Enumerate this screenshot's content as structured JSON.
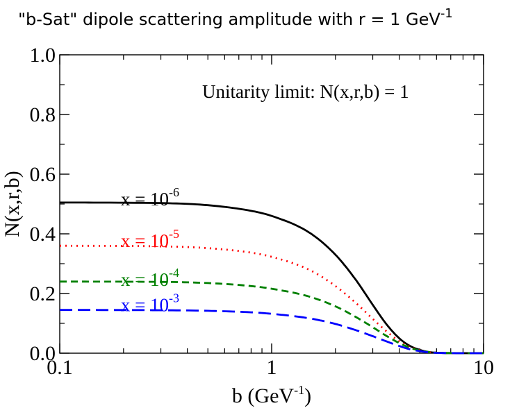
{
  "chart_data": {
    "type": "line",
    "title": {
      "main": "\"b-Sat\" dipole scattering amplitude with r = 1 GeV",
      "sup": "-1"
    },
    "xlabel": {
      "main": "b  (GeV",
      "sup": "-1",
      "tail": ")"
    },
    "ylabel": "N(x,r,b)",
    "x_scale": "log",
    "xlim": [
      0.1,
      10
    ],
    "ylim": [
      0,
      1
    ],
    "x_ticks": [
      {
        "value": 0.1,
        "label": "0.1"
      },
      {
        "value": 1,
        "label": "1"
      },
      {
        "value": 10,
        "label": "10"
      }
    ],
    "y_ticks": [
      {
        "value": 0.0,
        "label": "0.0"
      },
      {
        "value": 0.2,
        "label": "0.2"
      },
      {
        "value": 0.4,
        "label": "0.4"
      },
      {
        "value": 0.6,
        "label": "0.6"
      },
      {
        "value": 0.8,
        "label": "0.8"
      },
      {
        "value": 1.0,
        "label": "1.0"
      }
    ],
    "grid": false,
    "annotation": "Unitarity limit: N(x,r,b) = 1",
    "series": [
      {
        "label_main": "x = 10",
        "label_sup": "-6",
        "color": "#000000",
        "dash": "solid",
        "label_x": 0.2,
        "label_y": 0.5,
        "x": [
          0.1,
          0.3,
          0.5,
          0.8,
          1.0,
          1.5,
          2.0,
          2.5,
          3.0,
          3.5,
          4.0,
          4.5,
          5.0,
          5.5,
          6.0,
          7.0,
          8.0,
          10.0
        ],
        "y": [
          0.505,
          0.503,
          0.496,
          0.477,
          0.46,
          0.405,
          0.33,
          0.245,
          0.162,
          0.095,
          0.05,
          0.024,
          0.011,
          0.004,
          0.0015,
          0.0003,
          0.0,
          0.0
        ]
      },
      {
        "label_main": "x = 10",
        "label_sup": "-5",
        "color": "#ff0000",
        "dash": "dotted",
        "label_x": 0.2,
        "label_y": 0.36,
        "x": [
          0.1,
          0.3,
          0.5,
          0.8,
          1.0,
          1.5,
          2.0,
          2.5,
          3.0,
          3.5,
          4.0,
          4.5,
          5.0,
          5.5,
          6.0,
          7.0,
          8.0,
          10.0
        ],
        "y": [
          0.36,
          0.358,
          0.352,
          0.337,
          0.323,
          0.28,
          0.225,
          0.168,
          0.115,
          0.072,
          0.04,
          0.021,
          0.01,
          0.004,
          0.0015,
          0.0003,
          0.0,
          0.0
        ]
      },
      {
        "label_main": "x = 10",
        "label_sup": "-4",
        "color": "#008000",
        "dash": "dashed",
        "label_x": 0.2,
        "label_y": 0.23,
        "x": [
          0.1,
          0.3,
          0.5,
          0.8,
          1.0,
          1.5,
          2.0,
          2.5,
          3.0,
          3.5,
          4.0,
          4.5,
          5.0,
          5.5,
          6.0,
          7.0,
          8.0,
          10.0
        ],
        "y": [
          0.24,
          0.239,
          0.235,
          0.225,
          0.216,
          0.19,
          0.157,
          0.121,
          0.087,
          0.057,
          0.034,
          0.018,
          0.009,
          0.004,
          0.0015,
          0.0003,
          0.0,
          0.0
        ]
      },
      {
        "label_main": "x = 10",
        "label_sup": "-3",
        "color": "#0000ff",
        "dash": "long-dashed",
        "label_x": 0.2,
        "label_y": 0.145,
        "x": [
          0.1,
          0.3,
          0.5,
          0.8,
          1.0,
          1.5,
          2.0,
          2.5,
          3.0,
          3.5,
          4.0,
          4.5,
          5.0,
          5.5,
          6.0,
          7.0,
          8.0,
          10.0
        ],
        "y": [
          0.145,
          0.144,
          0.142,
          0.137,
          0.132,
          0.117,
          0.098,
          0.077,
          0.057,
          0.039,
          0.024,
          0.013,
          0.007,
          0.003,
          0.0012,
          0.0002,
          0.0,
          0.0
        ]
      }
    ]
  }
}
